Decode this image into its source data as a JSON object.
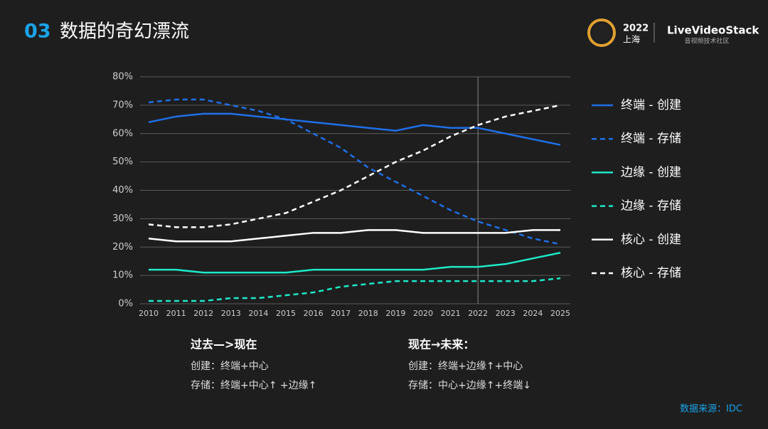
{
  "header": {
    "number": "03",
    "title": "数据的奇幻漂流",
    "event_year": "2022",
    "event_city": "上海",
    "brand": "LiveVideoStack",
    "brand_subtitle": "音视频技术社区"
  },
  "chart_data": {
    "type": "line",
    "categories": [
      "2010",
      "2011",
      "2012",
      "2013",
      "2014",
      "2015",
      "2016",
      "2017",
      "2018",
      "2019",
      "2020",
      "2021",
      "2022",
      "2023",
      "2024",
      "2025"
    ],
    "series": [
      {
        "name": "终端 - 创建",
        "color": "#1f6fe6",
        "style": "solid",
        "values": [
          64,
          66,
          67,
          67,
          66,
          65,
          64,
          63,
          62,
          61,
          63,
          62,
          62,
          60,
          58,
          56
        ]
      },
      {
        "name": "终端 - 存储",
        "color": "#1f6fe6",
        "style": "dashed",
        "values": [
          71,
          72,
          72,
          70,
          68,
          65,
          60,
          55,
          48,
          43,
          38,
          33,
          29,
          26,
          23,
          21
        ]
      },
      {
        "name": "边缘 - 创建",
        "color": "#1de9c8",
        "style": "solid",
        "values": [
          12,
          12,
          11,
          11,
          11,
          11,
          12,
          12,
          12,
          12,
          12,
          13,
          13,
          14,
          16,
          18
        ]
      },
      {
        "name": "边缘 - 存储",
        "color": "#1de9c8",
        "style": "dashed",
        "values": [
          1,
          1,
          1,
          2,
          2,
          3,
          4,
          6,
          7,
          8,
          8,
          8,
          8,
          8,
          8,
          9
        ]
      },
      {
        "name": "核心 - 创建",
        "color": "#ffffff",
        "style": "solid",
        "values": [
          23,
          22,
          22,
          22,
          23,
          24,
          25,
          25,
          26,
          26,
          25,
          25,
          25,
          25,
          26,
          26
        ]
      },
      {
        "name": "核心 - 存储",
        "color": "#ffffff",
        "style": "dashed",
        "values": [
          28,
          27,
          27,
          28,
          30,
          32,
          36,
          40,
          45,
          50,
          54,
          59,
          63,
          66,
          68,
          70
        ]
      }
    ],
    "ylim": [
      0,
      80
    ],
    "yticks": [
      {
        "value": 0,
        "label": "0%"
      },
      {
        "value": 10,
        "label": "10%"
      },
      {
        "value": 20,
        "label": "20%"
      },
      {
        "value": 30,
        "label": "30%"
      },
      {
        "value": 40,
        "label": "40%"
      },
      {
        "value": 50,
        "label": "50%"
      },
      {
        "value": 60,
        "label": "60%"
      },
      {
        "value": 70,
        "label": "70%"
      },
      {
        "value": 80,
        "label": "80%"
      }
    ],
    "grid": true,
    "legend": "right",
    "vline_at": "2022"
  },
  "notes": [
    {
      "heading": "过去—>现在",
      "lines": [
        "创建：终端+中心",
        "存储：终端+中心↑ +边缘↑"
      ]
    },
    {
      "heading": "现在→未来：",
      "lines": [
        "创建：终端+边缘↑+中心",
        "存储：中心+边缘↑+终端↓"
      ]
    }
  ],
  "source": "数据来源：IDC"
}
